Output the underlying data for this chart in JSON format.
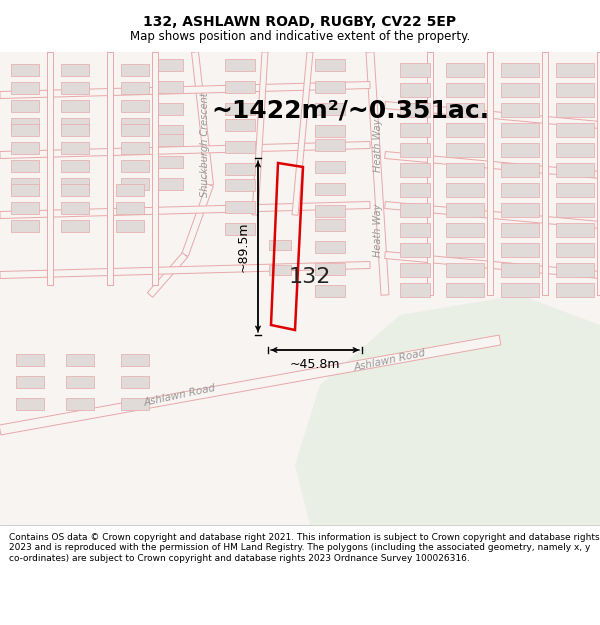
{
  "title": "132, ASHLAWN ROAD, RUGBY, CV22 5EP",
  "subtitle": "Map shows position and indicative extent of the property.",
  "area_text": "~1422m²/~0.351ac.",
  "property_label": "132",
  "dim_width": "~45.8m",
  "dim_height": "~89.5m",
  "footer_text": "Contains OS data © Crown copyright and database right 2021. This information is subject to Crown copyright and database rights 2023 and is reproduced with the permission of HM Land Registry. The polygons (including the associated geometry, namely x, y co-ordinates) are subject to Crown copyright and database rights 2023 Ordnance Survey 100026316.",
  "map_bg": "#f7f4f2",
  "block_fill": "#e0dbd8",
  "block_edge": "#e8a8a8",
  "street_color": "#e8a8a8",
  "road_fill": "#f5f0ee",
  "property_color": "#dd0000",
  "green_color": "#eaefe5",
  "title_color": "#000000",
  "footer_color": "#000000",
  "area_text_color": "#000000",
  "dim_color": "#000000",
  "fig_width": 6.0,
  "fig_height": 6.25,
  "dpi": 100,
  "title_fontsize": 10,
  "subtitle_fontsize": 8.5,
  "area_fontsize": 18,
  "label_fontsize": 16,
  "dim_fontsize": 9,
  "footer_fontsize": 6.5,
  "street_label_fontsize": 7,
  "street_label_color": "#999999"
}
